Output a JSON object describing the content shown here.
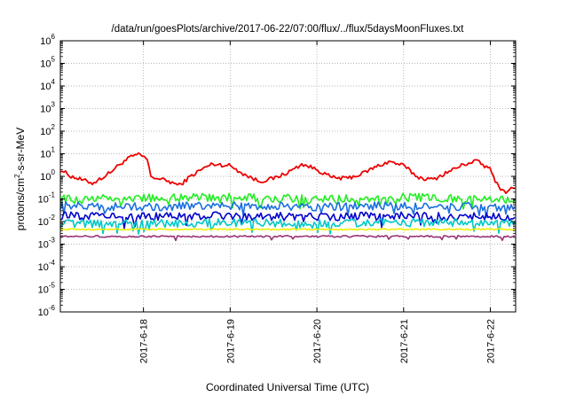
{
  "chart_data": {
    "type": "line",
    "title": "/data/run/goesPlots/archive/2017-06-22/07:00/flux/../flux/5daysMoonFluxes.txt",
    "xlabel": "Coordinated Universal Time (UTC)",
    "ylabel": {
      "prefix": "protons/cm",
      "superscript": "2",
      "suffix": "-s-sr-MeV"
    },
    "y_scale": "log",
    "ylim": [
      1e-06,
      1000000.0
    ],
    "y_ticks": [
      {
        "base": "10",
        "exp": "-6"
      },
      {
        "base": "10",
        "exp": "-5"
      },
      {
        "base": "10",
        "exp": "-4"
      },
      {
        "base": "10",
        "exp": "-3"
      },
      {
        "base": "10",
        "exp": "-2"
      },
      {
        "base": "10",
        "exp": "-1"
      },
      {
        "base": "10",
        "exp": "0"
      },
      {
        "base": "10",
        "exp": "1"
      },
      {
        "base": "10",
        "exp": "2"
      },
      {
        "base": "10",
        "exp": "3"
      },
      {
        "base": "10",
        "exp": "4"
      },
      {
        "base": "10",
        "exp": "5"
      },
      {
        "base": "10",
        "exp": "6"
      }
    ],
    "xlim": [
      "2017-06-17 01:00",
      "2017-06-22 07:00"
    ],
    "x_ticks": [
      "2017-6-18",
      "2017-6-19",
      "2017-6-20",
      "2017-6-21",
      "2017-6-22"
    ],
    "x_tick_dates": [
      "2017-06-18 00:00",
      "2017-06-19 00:00",
      "2017-06-20 00:00",
      "2017-06-21 00:00",
      "2017-06-22 00:00"
    ],
    "grid": true,
    "legend": "none",
    "series": [
      {
        "color": "#ee0000",
        "x": [
          "2017-06-17 01:00",
          "2017-06-17 04:00",
          "2017-06-17 07:00",
          "2017-06-17 10:00",
          "2017-06-17 14:00",
          "2017-06-17 18:00",
          "2017-06-17 21:00",
          "2017-06-17 23:00",
          "2017-06-18 01:00",
          "2017-06-18 02:00",
          "2017-06-18 04:00",
          "2017-06-18 07:00",
          "2017-06-18 10:00",
          "2017-06-18 13:00",
          "2017-06-18 16:00",
          "2017-06-18 19:00",
          "2017-06-19 00:00",
          "2017-06-19 04:00",
          "2017-06-19 08:00",
          "2017-06-19 12:00",
          "2017-06-19 16:00",
          "2017-06-19 20:00",
          "2017-06-20 00:00",
          "2017-06-20 04:00",
          "2017-06-20 08:00",
          "2017-06-20 12:00",
          "2017-06-20 16:00",
          "2017-06-20 20:00",
          "2017-06-21 00:00",
          "2017-06-21 04:00",
          "2017-06-21 08:00",
          "2017-06-21 12:00",
          "2017-06-21 16:00",
          "2017-06-21 20:00",
          "2017-06-22 00:00",
          "2017-06-22 02:00",
          "2017-06-22 04:00",
          "2017-06-22 07:00"
        ],
        "y": [
          2.0,
          1.0,
          0.7,
          0.5,
          1.2,
          4.0,
          8.0,
          9.0,
          6.0,
          1.0,
          0.8,
          0.6,
          0.4,
          1.0,
          2.0,
          3.5,
          3.0,
          1.2,
          0.6,
          0.8,
          1.5,
          3.5,
          2.0,
          0.9,
          0.8,
          1.2,
          2.5,
          4.5,
          3.0,
          0.9,
          0.7,
          1.5,
          3.0,
          5.0,
          2.0,
          0.4,
          0.2,
          0.35
        ]
      },
      {
        "color": "#22ee22",
        "x": [
          "2017-06-17 01:00",
          "2017-06-18 00:00",
          "2017-06-19 00:00",
          "2017-06-20 00:00",
          "2017-06-21 00:00",
          "2017-06-22 00:00",
          "2017-06-22 07:00"
        ],
        "y": [
          0.1,
          0.11,
          0.12,
          0.1,
          0.12,
          0.1,
          0.09
        ]
      },
      {
        "color": "#1a6fe0",
        "x": [
          "2017-06-17 01:00",
          "2017-06-18 00:00",
          "2017-06-19 00:00",
          "2017-06-20 00:00",
          "2017-06-21 00:00",
          "2017-06-22 00:00",
          "2017-06-22 07:00"
        ],
        "y": [
          0.05,
          0.045,
          0.05,
          0.045,
          0.05,
          0.045,
          0.04
        ]
      },
      {
        "color": "#0000cc",
        "x": [
          "2017-06-17 01:00",
          "2017-06-18 00:00",
          "2017-06-19 00:00",
          "2017-06-20 00:00",
          "2017-06-21 00:00",
          "2017-06-22 00:00",
          "2017-06-22 07:00"
        ],
        "y": [
          0.018,
          0.016,
          0.018,
          0.016,
          0.018,
          0.016,
          0.014
        ]
      },
      {
        "color": "#00c8c8",
        "x": [
          "2017-06-17 01:00",
          "2017-06-18 00:00",
          "2017-06-19 00:00",
          "2017-06-20 00:00",
          "2017-06-21 00:00",
          "2017-06-22 00:00",
          "2017-06-22 07:00"
        ],
        "y": [
          0.008,
          0.008,
          0.009,
          0.008,
          0.009,
          0.008,
          0.008
        ]
      },
      {
        "color": "#eeee00",
        "x": [
          "2017-06-17 01:00",
          "2017-06-18 00:00",
          "2017-06-19 00:00",
          "2017-06-20 00:00",
          "2017-06-21 00:00",
          "2017-06-22 00:00",
          "2017-06-22 07:00"
        ],
        "y": [
          0.0045,
          0.0045,
          0.0045,
          0.0045,
          0.0045,
          0.0045,
          0.0045
        ]
      },
      {
        "color": "#993377",
        "x": [
          "2017-06-17 01:00",
          "2017-06-18 00:00",
          "2017-06-19 00:00",
          "2017-06-20 00:00",
          "2017-06-21 00:00",
          "2017-06-22 00:00",
          "2017-06-22 07:00"
        ],
        "y": [
          0.0022,
          0.0022,
          0.0022,
          0.0022,
          0.0022,
          0.0022,
          0.0022
        ]
      }
    ]
  }
}
